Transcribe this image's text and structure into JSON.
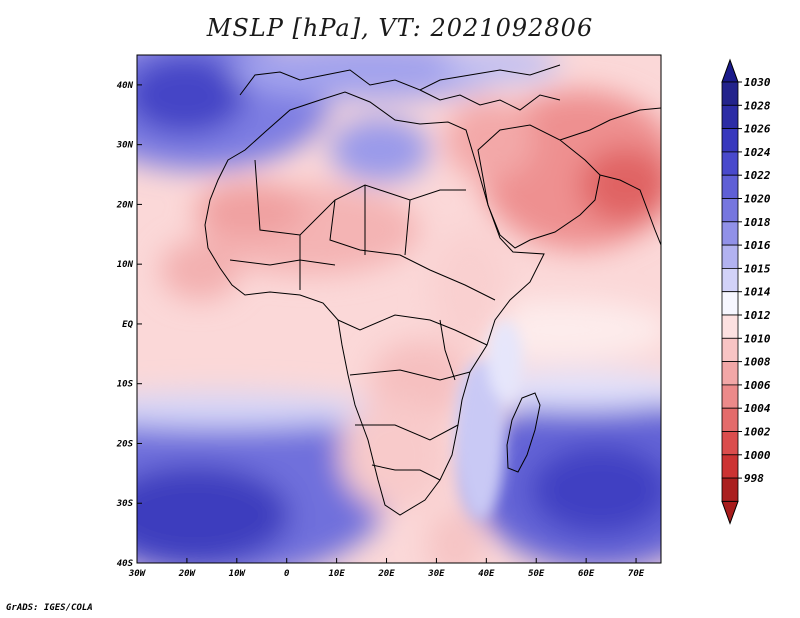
{
  "title": "MSLP [hPa], VT: 2021092806",
  "credit": "GrADS: IGES/COLA",
  "map": {
    "variable": "MSLP",
    "units": "hPa",
    "valid_time": "2021092806",
    "lon_range": [
      -30,
      75
    ],
    "lat_range": [
      -40,
      45
    ],
    "lon_ticks": [
      "30W",
      "20W",
      "10W",
      "0",
      "10E",
      "20E",
      "30E",
      "40E",
      "50E",
      "60E",
      "70E"
    ],
    "lat_ticks": [
      "40N",
      "30N",
      "20N",
      "10N",
      "EQ",
      "10S",
      "20S",
      "30S",
      "40S"
    ],
    "lon_tick_values": [
      -30,
      -20,
      -10,
      0,
      10,
      20,
      30,
      40,
      50,
      60,
      70
    ],
    "lat_tick_values": [
      40,
      30,
      20,
      10,
      0,
      -10,
      -20,
      -30,
      -40
    ]
  },
  "colorbar": {
    "labels": [
      "1030",
      "1028",
      "1026",
      "1024",
      "1022",
      "1020",
      "1018",
      "1016",
      "1015",
      "1014",
      "1012",
      "1010",
      "1008",
      "1006",
      "1004",
      "1002",
      "1000",
      "998"
    ],
    "colors": [
      "#23238c",
      "#2c2ca5",
      "#3838bd",
      "#4949cc",
      "#5f5fd6",
      "#7676df",
      "#9191e8",
      "#b2b2f0",
      "#d2d2f8",
      "#f7f7ff",
      "#fde1e1",
      "#f8c4c4",
      "#f2a7a7",
      "#ec8a8a",
      "#e46b6b",
      "#db4d4d",
      "#cc3333",
      "#aa1f1f"
    ],
    "top_arrow_color": "#1a1a8a",
    "bottom_arrow_color": "#a81c1c"
  }
}
